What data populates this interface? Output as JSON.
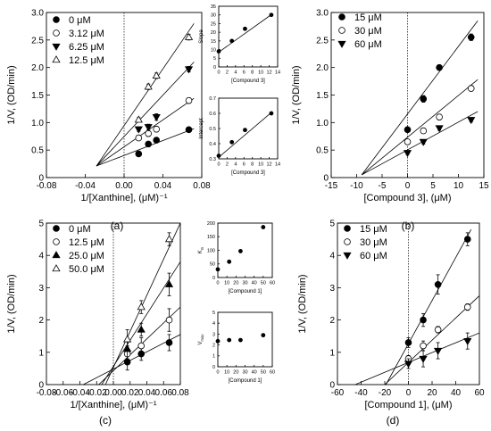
{
  "panel_labels": [
    "(a)",
    "(b)",
    "(c)",
    "(d)"
  ],
  "chart_data": [
    {
      "id": "a",
      "type": "scatter",
      "xlabel": "1/[Xanthine], (μM)⁻¹",
      "ylabel": "1/V, (OD/min)",
      "xlim": [
        -0.08,
        0.08
      ],
      "ylim": [
        0,
        3.0
      ],
      "xticks": [
        -0.08,
        -0.04,
        0.0,
        0.04,
        0.08
      ],
      "yticks": [
        0,
        0.5,
        1.0,
        1.5,
        2.0,
        2.5,
        3.0
      ],
      "xticklabels": [
        "-0.08",
        "-0.04",
        "0.00",
        "0.04",
        "0.08"
      ],
      "yticklabels": [
        "0",
        "0.5",
        "1.0",
        "1.5",
        "2.0",
        "2.5",
        "3.0"
      ],
      "legend": "top-left",
      "series": [
        {
          "name": "0 μM",
          "marker": "filled-circle",
          "x": [
            0.015,
            0.025,
            0.0333,
            0.0667
          ],
          "y": [
            0.43,
            0.61,
            0.68,
            0.87
          ],
          "err": [
            0.03,
            0.03,
            0.04,
            0.04
          ]
        },
        {
          "name": "3.12 μM",
          "marker": "open-circle",
          "x": [
            0.015,
            0.025,
            0.0333,
            0.0667
          ],
          "y": [
            0.72,
            0.8,
            0.88,
            1.4
          ],
          "err": [
            0.03,
            0.05,
            0.05,
            0.05
          ]
        },
        {
          "name": "6.25 μM",
          "marker": "filled-triangle-down",
          "x": [
            0.015,
            0.025,
            0.0333,
            0.0667
          ],
          "y": [
            0.88,
            0.92,
            1.1,
            1.97
          ],
          "err": [
            0.04,
            0.05,
            0.06,
            0.05
          ]
        },
        {
          "name": "12.5 μM",
          "marker": "open-triangle-up",
          "x": [
            0.015,
            0.025,
            0.0333,
            0.0667
          ],
          "y": [
            1.05,
            1.65,
            1.85,
            2.55
          ],
          "err": [
            0.04,
            0.05,
            0.05,
            0.05
          ]
        }
      ],
      "fit_lines": [
        [
          -0.0285,
          0.21,
          0.072,
          0.89
        ],
        [
          -0.0285,
          0.21,
          0.072,
          1.44
        ],
        [
          -0.0285,
          0.21,
          0.072,
          2.1
        ],
        [
          -0.0285,
          0.21,
          0.072,
          2.8
        ]
      ]
    },
    {
      "id": "a-slope",
      "type": "scatter",
      "xlabel": "[Compound 3]",
      "ylabel": "Slope",
      "xlim": [
        0,
        14
      ],
      "ylim": [
        0,
        35
      ],
      "xticks": [
        0,
        2,
        4,
        6,
        8,
        10,
        12,
        14
      ],
      "yticks": [
        0,
        5,
        10,
        15,
        20,
        25,
        30,
        35
      ],
      "xticklabels": [
        "0",
        "2",
        "4",
        "6",
        "8",
        "10",
        "12",
        "14"
      ],
      "yticklabels": [
        "0",
        "5",
        "10",
        "15",
        "20",
        "25",
        "30",
        "35"
      ],
      "series": [
        {
          "marker": "filled-circle",
          "x": [
            0,
            3.12,
            6.25,
            12.5
          ],
          "y": [
            9,
            15,
            22,
            30
          ]
        }
      ],
      "fit_lines": [
        [
          0,
          8.5,
          12.7,
          30.5
        ]
      ]
    },
    {
      "id": "a-intercept",
      "type": "scatter",
      "xlabel": "[Compound 3]",
      "ylabel": "Intercept",
      "xlim": [
        0,
        14
      ],
      "ylim": [
        0.3,
        0.7
      ],
      "xticks": [
        0,
        2,
        4,
        6,
        8,
        10,
        12,
        14
      ],
      "yticks": [
        0.3,
        0.4,
        0.5,
        0.6,
        0.7
      ],
      "xticklabels": [
        "0",
        "2",
        "4",
        "6",
        "8",
        "10",
        "12",
        "14"
      ],
      "yticklabels": [
        "0.3",
        "0.4",
        "0.5",
        "0.6",
        "0.7"
      ],
      "series": [
        {
          "marker": "filled-circle",
          "x": [
            0,
            3.12,
            6.25,
            12.5
          ],
          "y": [
            0.32,
            0.41,
            0.49,
            0.6
          ]
        }
      ],
      "fit_lines": [
        [
          0,
          0.31,
          12.7,
          0.61
        ]
      ]
    },
    {
      "id": "b",
      "type": "scatter",
      "xlabel": "[Compound 3], (μM)",
      "ylabel": "1/V, (OD/min)",
      "xlim": [
        -15,
        15
      ],
      "ylim": [
        0,
        3.0
      ],
      "xticks": [
        -15,
        -10,
        -5,
        0,
        5,
        10,
        15
      ],
      "yticks": [
        0,
        0.5,
        1.0,
        1.5,
        2.0,
        2.5,
        3.0
      ],
      "xticklabels": [
        "-15",
        "-10",
        "-5",
        "0",
        "5",
        "10",
        "15"
      ],
      "yticklabels": [
        "0",
        "0.5",
        "1.0",
        "1.5",
        "2.0",
        "2.5",
        "3.0"
      ],
      "legend": "top-left",
      "series": [
        {
          "name": "15 μM",
          "marker": "filled-circle",
          "x": [
            0,
            3.12,
            6.25,
            12.5
          ],
          "y": [
            0.87,
            1.43,
            2.0,
            2.55
          ],
          "err": [
            0.04,
            0.06,
            0.04,
            0.06
          ]
        },
        {
          "name": "30 μM",
          "marker": "open-circle",
          "x": [
            0,
            3.12,
            6.25,
            12.5
          ],
          "y": [
            0.65,
            0.85,
            1.1,
            1.62
          ],
          "err": [
            0.04,
            0.04,
            0.05,
            0.05
          ]
        },
        {
          "name": "60 μM",
          "marker": "filled-triangle-down",
          "x": [
            0,
            3.12,
            6.25,
            12.5
          ],
          "y": [
            0.45,
            0.65,
            0.9,
            1.05
          ],
          "err": [
            0.03,
            0.04,
            0.04,
            0.04
          ]
        }
      ],
      "fit_lines": [
        [
          -9.0,
          0.05,
          13.8,
          2.85
        ],
        [
          -9.0,
          0.05,
          13.8,
          1.78
        ],
        [
          -9.0,
          0.05,
          13.8,
          1.2
        ]
      ]
    },
    {
      "id": "c",
      "type": "scatter",
      "xlabel": "1/[Xanthine], (μM)⁻¹",
      "ylabel": "1/V, (OD/min)",
      "xlim": [
        -0.08,
        0.08
      ],
      "ylim": [
        0,
        5
      ],
      "xticks": [
        -0.08,
        -0.06,
        -0.04,
        -0.02,
        0.0,
        0.02,
        0.04,
        0.06,
        0.08
      ],
      "yticks": [
        0,
        1,
        2,
        3,
        4,
        5
      ],
      "xticklabels": [
        "-0.08",
        "-0.06",
        "-0.04",
        "-0.02",
        "0.00",
        "0.02",
        "0.04",
        "0.06",
        "0.08"
      ],
      "yticklabels": [
        "0",
        "1",
        "2",
        "3",
        "4",
        "5"
      ],
      "legend": "top-left",
      "series": [
        {
          "name": "0 μM",
          "marker": "filled-circle",
          "x": [
            0.0167,
            0.0333,
            0.0667
          ],
          "y": [
            0.7,
            0.95,
            1.3
          ],
          "err": [
            0.25,
            0.2,
            0.25
          ]
        },
        {
          "name": "12.5 μM",
          "marker": "open-circle",
          "x": [
            0.0167,
            0.0333,
            0.0667
          ],
          "y": [
            0.95,
            1.2,
            2.0
          ],
          "err": [
            0.25,
            0.25,
            0.35
          ]
        },
        {
          "name": "25.0 μM",
          "marker": "filled-triangle-up",
          "x": [
            0.0167,
            0.0333,
            0.0667
          ],
          "y": [
            1.1,
            1.7,
            3.1
          ],
          "err": [
            0.3,
            0.2,
            0.35
          ]
        },
        {
          "name": "50.0 μM",
          "marker": "open-triangle-up",
          "x": [
            0.0167,
            0.0333,
            0.0667
          ],
          "y": [
            1.4,
            2.4,
            4.5
          ],
          "err": [
            0.3,
            0.2,
            0.2
          ]
        }
      ],
      "fit_lines": [
        [
          -0.036,
          0.0,
          0.08,
          1.55
        ],
        [
          -0.0175,
          0.0,
          0.08,
          2.4
        ],
        [
          -0.014,
          0.0,
          0.08,
          3.8
        ],
        [
          -0.0095,
          0.0,
          0.08,
          5.0
        ]
      ]
    },
    {
      "id": "c-km",
      "type": "scatter",
      "xlabel": "[Compound 1]",
      "ylabel": "K",
      "ylabel_sub": "m",
      "xlim": [
        0,
        60
      ],
      "ylim": [
        0,
        200
      ],
      "xticks": [
        0,
        10,
        20,
        30,
        40,
        50,
        60
      ],
      "yticks": [
        0,
        50,
        100,
        150,
        200
      ],
      "xticklabels": [
        "0",
        "10",
        "20",
        "30",
        "40",
        "50",
        "60"
      ],
      "yticklabels": [
        "0",
        "50",
        "100",
        "150",
        "200"
      ],
      "series": [
        {
          "marker": "filled-circle",
          "x": [
            0,
            12.5,
            25,
            50
          ],
          "y": [
            30,
            58,
            97,
            185
          ]
        }
      ]
    },
    {
      "id": "c-vmax",
      "type": "scatter",
      "xlabel": "[Compound 1]",
      "ylabel": "V",
      "ylabel_sub": "max",
      "xlim": [
        0,
        60
      ],
      "ylim": [
        0,
        5
      ],
      "xticks": [
        0,
        10,
        20,
        30,
        40,
        50,
        60
      ],
      "yticks": [
        0,
        1,
        2,
        3,
        4,
        5
      ],
      "xticklabels": [
        "0",
        "10",
        "20",
        "30",
        "40",
        "50",
        "60"
      ],
      "yticklabels": [
        "0",
        "1",
        "2",
        "3",
        "4",
        "5"
      ],
      "series": [
        {
          "marker": "filled-circle",
          "x": [
            0,
            12.5,
            25,
            50
          ],
          "y": [
            2.35,
            2.45,
            2.45,
            2.9
          ]
        }
      ]
    },
    {
      "id": "d",
      "type": "scatter",
      "xlabel": "[Compound 1], (μM)",
      "ylabel": "1/V, (OD/min)",
      "xlim": [
        -60,
        60
      ],
      "ylim": [
        0,
        5
      ],
      "xticks": [
        -60,
        -40,
        -20,
        0,
        20,
        40,
        60
      ],
      "yticks": [
        0,
        1,
        2,
        3,
        4,
        5
      ],
      "xticklabels": [
        "-60",
        "-40",
        "-20",
        "0",
        "20",
        "40",
        "60"
      ],
      "yticklabels": [
        "0",
        "1",
        "2",
        "3",
        "4",
        "5"
      ],
      "legend": "top-left",
      "series": [
        {
          "name": "15 μM",
          "marker": "filled-circle",
          "x": [
            0,
            12.5,
            25,
            50
          ],
          "y": [
            1.3,
            2.0,
            3.1,
            4.5
          ],
          "err": [
            0.15,
            0.2,
            0.3,
            0.2
          ]
        },
        {
          "name": "30 μM",
          "marker": "open-circle",
          "x": [
            0,
            12.5,
            25,
            50
          ],
          "y": [
            0.8,
            1.2,
            1.7,
            2.4
          ],
          "err": [
            0.1,
            0.15,
            0.1,
            0.1
          ]
        },
        {
          "name": "60 μM",
          "marker": "filled-triangle-down",
          "x": [
            0,
            12.5,
            25,
            50
          ],
          "y": [
            0.65,
            0.8,
            1.05,
            1.35
          ],
          "err": [
            0.15,
            0.25,
            0.25,
            0.25
          ]
        }
      ],
      "fit_lines": [
        [
          -19.0,
          0.0,
          53.0,
          4.8
        ],
        [
          -20.0,
          0.0,
          60.0,
          2.75
        ],
        [
          -45.0,
          0.0,
          60.0,
          1.6
        ]
      ]
    }
  ]
}
